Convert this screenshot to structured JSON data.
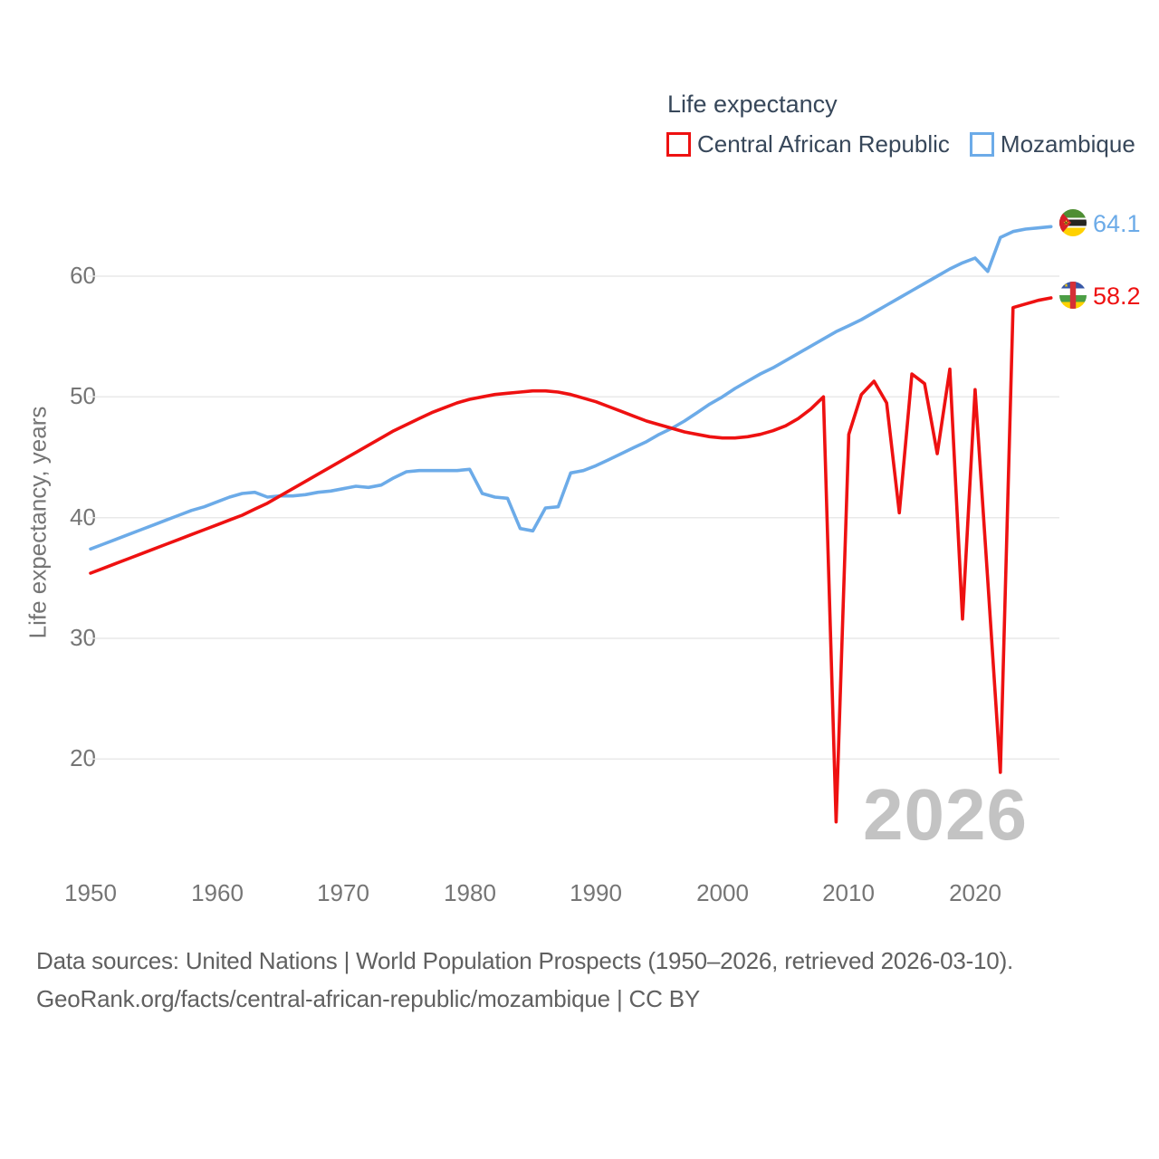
{
  "legend": {
    "title": "Life expectancy",
    "items": [
      {
        "label": "Central African Republic",
        "color": "#ee1111"
      },
      {
        "label": "Mozambique",
        "color": "#6cabe8"
      }
    ]
  },
  "chart_data": {
    "type": "line",
    "title": "Life expectancy",
    "ylabel": "Life expectancy, years",
    "x_range": [
      1950,
      2026
    ],
    "x_ticks": [
      1950,
      1960,
      1970,
      1980,
      1990,
      2000,
      2010,
      2020
    ],
    "y_ticks": [
      60,
      50,
      40,
      30,
      20
    ],
    "grid": "horizontal-only",
    "legend_position": "top-right",
    "series": [
      {
        "name": "Central African Republic",
        "id": "central-african-republic",
        "color": "#ee1111",
        "z": 2,
        "end_label": "58.2",
        "values": [
          35.4,
          35.8,
          36.2,
          36.6,
          37.0,
          37.4,
          37.8,
          38.2,
          38.6,
          39.0,
          39.4,
          39.8,
          40.2,
          40.7,
          41.2,
          41.8,
          42.4,
          43.0,
          43.6,
          44.2,
          44.8,
          45.4,
          46.0,
          46.6,
          47.2,
          47.7,
          48.2,
          48.7,
          49.1,
          49.5,
          49.8,
          50.0,
          50.2,
          50.3,
          50.4,
          50.5,
          50.5,
          50.4,
          50.2,
          49.9,
          49.6,
          49.2,
          48.8,
          48.4,
          48.0,
          47.7,
          47.4,
          47.1,
          46.9,
          46.7,
          46.6,
          46.6,
          46.7,
          46.9,
          47.2,
          47.6,
          48.2,
          49.0,
          50.0,
          14.8,
          46.9,
          50.2,
          51.3,
          49.5,
          40.4,
          51.9,
          51.1,
          45.3,
          52.3,
          31.6,
          50.6,
          34.8,
          18.9,
          57.4,
          57.7,
          58.0,
          58.2
        ]
      },
      {
        "name": "Mozambique",
        "id": "mozambique",
        "color": "#6cabe8",
        "z": 1,
        "end_label": "64.1",
        "values": [
          37.4,
          37.8,
          38.2,
          38.6,
          39.0,
          39.4,
          39.8,
          40.2,
          40.6,
          40.9,
          41.3,
          41.7,
          42.0,
          42.1,
          41.7,
          41.8,
          41.8,
          41.9,
          42.1,
          42.2,
          42.4,
          42.6,
          42.5,
          42.7,
          43.3,
          43.8,
          43.9,
          43.9,
          43.9,
          43.9,
          44.0,
          42.0,
          41.7,
          41.6,
          39.1,
          38.9,
          40.8,
          40.9,
          43.7,
          43.9,
          44.3,
          44.8,
          45.3,
          45.8,
          46.3,
          46.9,
          47.4,
          48.0,
          48.7,
          49.4,
          50.0,
          50.7,
          51.3,
          51.9,
          52.4,
          53.0,
          53.6,
          54.2,
          54.8,
          55.4,
          55.9,
          56.4,
          57.0,
          57.6,
          58.2,
          58.8,
          59.4,
          60.0,
          60.6,
          61.1,
          61.5,
          60.4,
          63.2,
          63.7,
          63.9,
          64.0,
          64.1
        ]
      }
    ]
  },
  "end_labels": {
    "mozambique": "64.1",
    "central_african_republic": "58.2"
  },
  "watermark": "2026",
  "footer": {
    "line1": "Data sources: United Nations | World Population Prospects (1950–2026, retrieved 2026-03-10).",
    "line2": "GeoRank.org/facts/central-african-republic/mozambique | CC BY"
  }
}
